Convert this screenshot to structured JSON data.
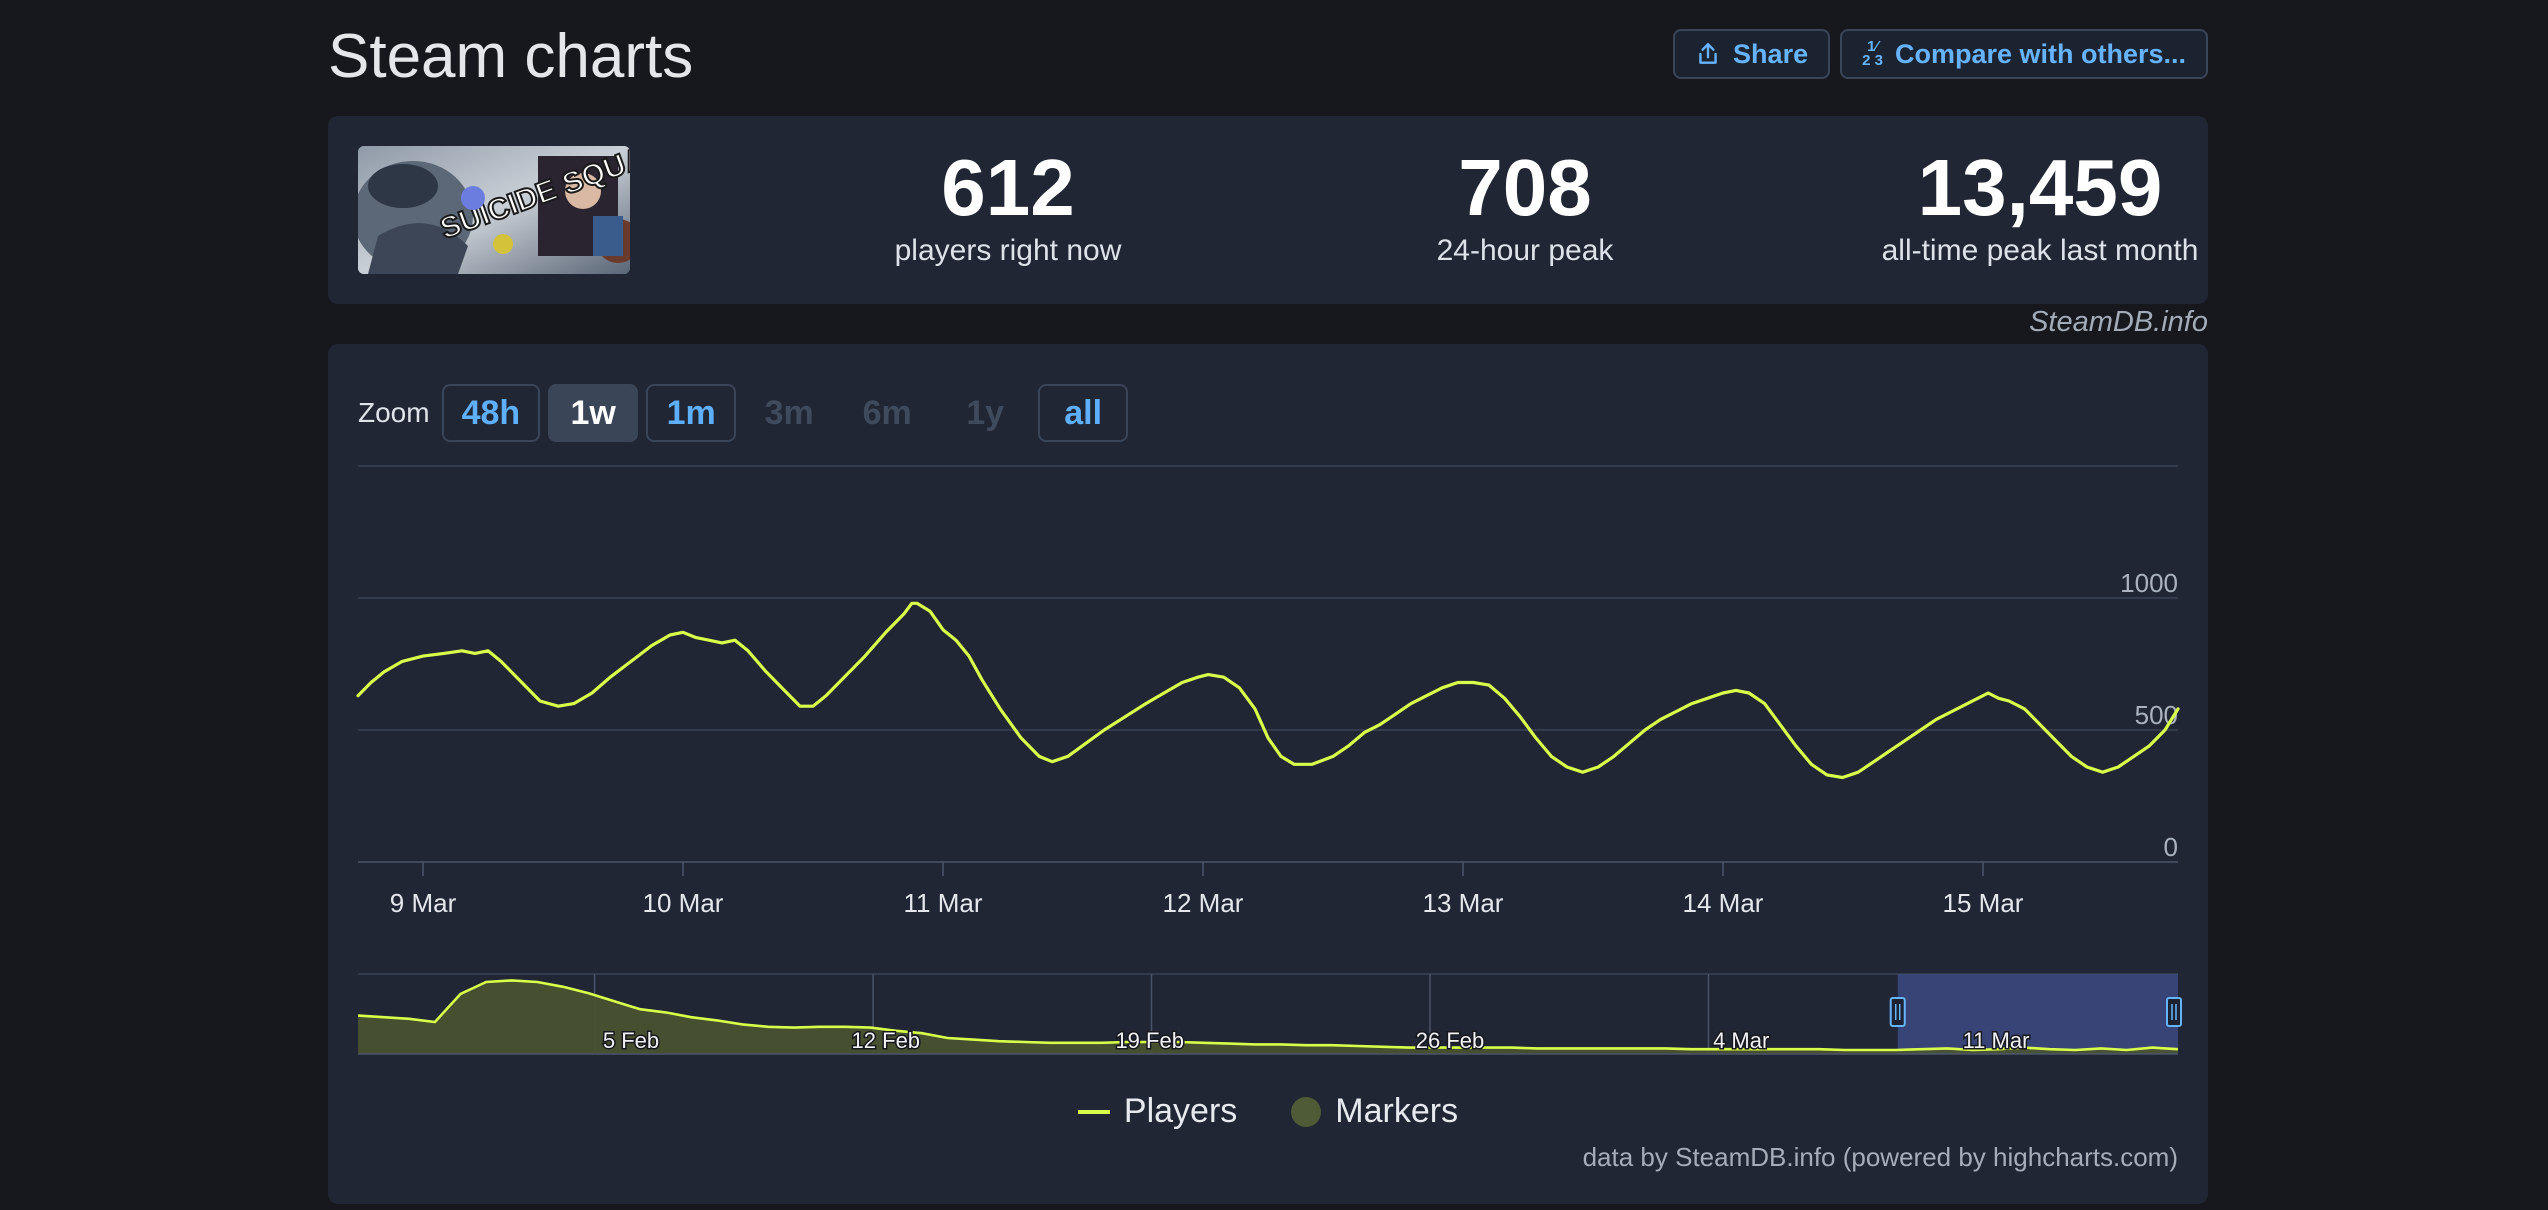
{
  "header": {
    "title": "Steam charts",
    "share_label": "Share",
    "compare_label": "Compare with others..."
  },
  "stats": [
    {
      "value": "612",
      "label": "players right now"
    },
    {
      "value": "708",
      "label": "24-hour peak"
    },
    {
      "value": "13,459",
      "label": "all-time peak last month"
    }
  ],
  "game_cover_text": "SUICIDE SQUAD",
  "credit_top": "SteamDB.info",
  "zoom": {
    "label": "Zoom",
    "options": [
      {
        "label": "48h",
        "state": "enabled"
      },
      {
        "label": "1w",
        "state": "active"
      },
      {
        "label": "1m",
        "state": "enabled"
      },
      {
        "label": "3m",
        "state": "disabled"
      },
      {
        "label": "6m",
        "state": "disabled"
      },
      {
        "label": "1y",
        "state": "disabled"
      },
      {
        "label": "all",
        "state": "enabled"
      }
    ]
  },
  "legend": {
    "players": "Players",
    "markers": "Markers"
  },
  "credit_bottom": "data by SteamDB.info (powered by highcharts.com)",
  "colors": {
    "line": "#d8ff4a",
    "background": "#16181d",
    "panel": "#202634",
    "accent": "#66b4ff",
    "navigator_selection": "#3d4a82"
  },
  "chart_data": {
    "type": "line",
    "x_unit": "days (day 0 = 9 Mar 00:00)",
    "x_ticks": [
      {
        "x": 0,
        "label": "9 Mar"
      },
      {
        "x": 1,
        "label": "10 Mar"
      },
      {
        "x": 2,
        "label": "11 Mar"
      },
      {
        "x": 3,
        "label": "12 Mar"
      },
      {
        "x": 4,
        "label": "13 Mar"
      },
      {
        "x": 5,
        "label": "14 Mar"
      },
      {
        "x": 6,
        "label": "15 Mar"
      }
    ],
    "y_ticks": [
      0,
      500,
      1000
    ],
    "ylim": [
      0,
      1500
    ],
    "xlim": [
      -0.25,
      6.75
    ],
    "series": [
      {
        "name": "Players",
        "points": [
          [
            -0.25,
            630
          ],
          [
            -0.2,
            680
          ],
          [
            -0.15,
            720
          ],
          [
            -0.08,
            760
          ],
          [
            0,
            780
          ],
          [
            0.08,
            790
          ],
          [
            0.15,
            800
          ],
          [
            0.2,
            790
          ],
          [
            0.25,
            800
          ],
          [
            0.3,
            760
          ],
          [
            0.38,
            680
          ],
          [
            0.45,
            610
          ],
          [
            0.52,
            590
          ],
          [
            0.58,
            600
          ],
          [
            0.65,
            640
          ],
          [
            0.72,
            700
          ],
          [
            0.8,
            760
          ],
          [
            0.88,
            820
          ],
          [
            0.95,
            860
          ],
          [
            1.0,
            870
          ],
          [
            1.05,
            850
          ],
          [
            1.1,
            840
          ],
          [
            1.15,
            830
          ],
          [
            1.2,
            840
          ],
          [
            1.25,
            800
          ],
          [
            1.32,
            720
          ],
          [
            1.4,
            640
          ],
          [
            1.45,
            590
          ],
          [
            1.5,
            590
          ],
          [
            1.55,
            630
          ],
          [
            1.62,
            700
          ],
          [
            1.7,
            780
          ],
          [
            1.78,
            870
          ],
          [
            1.82,
            910
          ],
          [
            1.85,
            940
          ],
          [
            1.88,
            980
          ],
          [
            1.9,
            980
          ],
          [
            1.95,
            950
          ],
          [
            2.0,
            880
          ],
          [
            2.05,
            840
          ],
          [
            2.1,
            780
          ],
          [
            2.15,
            690
          ],
          [
            2.22,
            580
          ],
          [
            2.3,
            470
          ],
          [
            2.37,
            400
          ],
          [
            2.42,
            380
          ],
          [
            2.48,
            400
          ],
          [
            2.55,
            450
          ],
          [
            2.62,
            500
          ],
          [
            2.7,
            550
          ],
          [
            2.78,
            600
          ],
          [
            2.85,
            640
          ],
          [
            2.92,
            680
          ],
          [
            2.98,
            700
          ],
          [
            3.02,
            710
          ],
          [
            3.08,
            700
          ],
          [
            3.14,
            660
          ],
          [
            3.2,
            580
          ],
          [
            3.25,
            470
          ],
          [
            3.3,
            400
          ],
          [
            3.35,
            370
          ],
          [
            3.42,
            370
          ],
          [
            3.5,
            400
          ],
          [
            3.56,
            440
          ],
          [
            3.62,
            490
          ],
          [
            3.68,
            520
          ],
          [
            3.74,
            560
          ],
          [
            3.8,
            600
          ],
          [
            3.86,
            630
          ],
          [
            3.92,
            660
          ],
          [
            3.98,
            680
          ],
          [
            4.04,
            680
          ],
          [
            4.1,
            670
          ],
          [
            4.16,
            620
          ],
          [
            4.22,
            550
          ],
          [
            4.28,
            470
          ],
          [
            4.34,
            400
          ],
          [
            4.4,
            360
          ],
          [
            4.46,
            340
          ],
          [
            4.52,
            360
          ],
          [
            4.58,
            400
          ],
          [
            4.64,
            450
          ],
          [
            4.7,
            500
          ],
          [
            4.76,
            540
          ],
          [
            4.82,
            570
          ],
          [
            4.88,
            600
          ],
          [
            4.94,
            620
          ],
          [
            5.0,
            640
          ],
          [
            5.05,
            650
          ],
          [
            5.1,
            640
          ],
          [
            5.16,
            600
          ],
          [
            5.22,
            520
          ],
          [
            5.28,
            440
          ],
          [
            5.34,
            370
          ],
          [
            5.4,
            330
          ],
          [
            5.46,
            320
          ],
          [
            5.52,
            340
          ],
          [
            5.58,
            380
          ],
          [
            5.64,
            420
          ],
          [
            5.7,
            460
          ],
          [
            5.76,
            500
          ],
          [
            5.82,
            540
          ],
          [
            5.88,
            570
          ],
          [
            5.94,
            600
          ],
          [
            5.98,
            620
          ],
          [
            6.02,
            640
          ],
          [
            6.06,
            620
          ],
          [
            6.1,
            610
          ],
          [
            6.16,
            580
          ],
          [
            6.22,
            520
          ],
          [
            6.28,
            460
          ],
          [
            6.34,
            400
          ],
          [
            6.4,
            360
          ],
          [
            6.46,
            340
          ],
          [
            6.52,
            360
          ],
          [
            6.58,
            400
          ],
          [
            6.64,
            440
          ],
          [
            6.7,
            500
          ],
          [
            6.75,
            580
          ]
        ]
      }
    ],
    "navigator": {
      "x_ticks": [
        "5 Feb",
        "12 Feb",
        "19 Feb",
        "26 Feb",
        "4 Mar",
        "11 Mar"
      ],
      "values": [
        0.48,
        0.46,
        0.44,
        0.4,
        0.75,
        0.9,
        0.92,
        0.9,
        0.84,
        0.76,
        0.66,
        0.56,
        0.52,
        0.46,
        0.42,
        0.37,
        0.34,
        0.33,
        0.34,
        0.34,
        0.33,
        0.29,
        0.26,
        0.2,
        0.18,
        0.16,
        0.15,
        0.14,
        0.14,
        0.14,
        0.15,
        0.15,
        0.15,
        0.14,
        0.13,
        0.12,
        0.12,
        0.11,
        0.11,
        0.1,
        0.09,
        0.08,
        0.08,
        0.08,
        0.08,
        0.08,
        0.07,
        0.07,
        0.07,
        0.07,
        0.07,
        0.07,
        0.06,
        0.06,
        0.06,
        0.06,
        0.06,
        0.06,
        0.05,
        0.05,
        0.05,
        0.06,
        0.07,
        0.05,
        0.06,
        0.08,
        0.06,
        0.05,
        0.07,
        0.05,
        0.08,
        0.06
      ],
      "selection_start_fraction": 0.846
    }
  }
}
